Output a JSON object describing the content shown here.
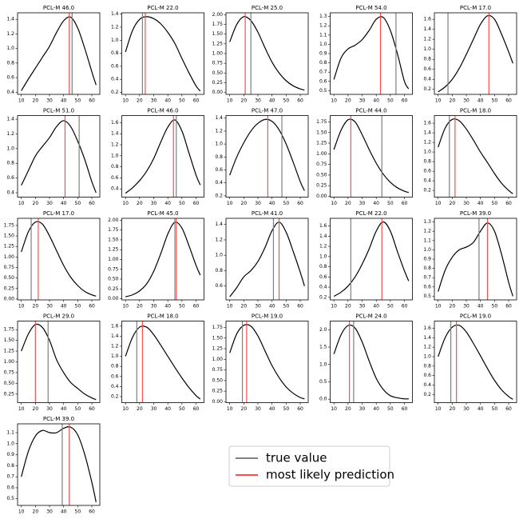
{
  "legend": [
    {
      "name": "true value",
      "color": "#808080"
    },
    {
      "name": "most likely prediction",
      "color": "#ff4d4d"
    }
  ],
  "chart_data": [
    {
      "type": "line",
      "title": "PCL-M 46.0",
      "color": "#000000",
      "true_value": 46,
      "prediction": 44,
      "x": [
        10,
        15,
        20,
        25,
        30,
        35,
        40,
        45,
        50,
        55,
        60,
        63
      ],
      "values": [
        0.42,
        0.58,
        0.73,
        0.88,
        1.03,
        1.22,
        1.38,
        1.43,
        1.28,
        1.0,
        0.68,
        0.5
      ],
      "xlim": [
        7.35,
        65.65
      ],
      "xticks": [
        10,
        20,
        30,
        40,
        50,
        60
      ],
      "ylim": [
        0.37,
        1.49
      ],
      "yticks": [
        0.4,
        0.6,
        0.8,
        {
          "value": 1,
          "label": "1.0"
        },
        1.2,
        1.4
      ]
    },
    {
      "type": "line",
      "title": "PCL-M 22.0",
      "color": "#000000",
      "true_value": 22,
      "prediction": 24,
      "x": [
        10,
        15,
        20,
        25,
        30,
        35,
        40,
        45,
        50,
        55,
        60,
        63
      ],
      "values": [
        0.82,
        1.15,
        1.32,
        1.36,
        1.33,
        1.25,
        1.12,
        0.95,
        0.72,
        0.5,
        0.3,
        0.22
      ],
      "xlim": [
        7.35,
        65.65
      ],
      "xticks": [
        10,
        20,
        30,
        40,
        50,
        60
      ],
      "ylim": [
        0.17,
        1.42
      ],
      "yticks": [
        0.2,
        0.4,
        0.6,
        0.8,
        {
          "value": 1,
          "label": "1.0"
        },
        1.2,
        1.4
      ]
    },
    {
      "type": "line",
      "title": "PCL-M 25.0",
      "color": "#000000",
      "true_value": 25,
      "prediction": 21,
      "x": [
        10,
        15,
        20,
        25,
        30,
        35,
        40,
        45,
        50,
        55,
        60,
        63
      ],
      "values": [
        1.3,
        1.75,
        1.95,
        1.85,
        1.55,
        1.15,
        0.78,
        0.5,
        0.3,
        0.17,
        0.09,
        0.06
      ],
      "xlim": [
        7.35,
        65.65
      ],
      "xticks": [
        10,
        20,
        30,
        40,
        50,
        60
      ],
      "ylim": [
        -0.05,
        2.05
      ],
      "yticks": [
        {
          "value": 0,
          "label": "0.00"
        },
        0.25,
        {
          "value": 0.5,
          "label": "0.50"
        },
        0.75,
        {
          "value": 1,
          "label": "1.00"
        },
        1.25,
        {
          "value": 1.5,
          "label": "1.50"
        },
        1.75,
        {
          "value": 2,
          "label": "2.00"
        }
      ]
    },
    {
      "type": "line",
      "title": "PCL-M 54.0",
      "color": "#000000",
      "true_value": 54,
      "prediction": 43,
      "x": [
        10,
        15,
        20,
        25,
        30,
        35,
        40,
        45,
        50,
        55,
        60,
        63
      ],
      "values": [
        0.62,
        0.85,
        0.95,
        0.99,
        1.05,
        1.15,
        1.27,
        1.29,
        1.15,
        0.9,
        0.6,
        0.52
      ],
      "xlim": [
        7.35,
        65.65
      ],
      "xticks": [
        10,
        20,
        30,
        40,
        50,
        60
      ],
      "ylim": [
        0.46,
        1.34
      ],
      "yticks": [
        0.5,
        0.6,
        0.7,
        0.8,
        0.9,
        {
          "value": 1,
          "label": "1.0"
        },
        1.1,
        1.2,
        1.3
      ]
    },
    {
      "type": "line",
      "title": "PCL-M 17.0",
      "color": "#000000",
      "true_value": 17,
      "prediction": 46,
      "x": [
        10,
        15,
        20,
        25,
        30,
        35,
        40,
        45,
        50,
        55,
        60,
        63
      ],
      "values": [
        0.15,
        0.25,
        0.4,
        0.62,
        0.9,
        1.2,
        1.5,
        1.67,
        1.6,
        1.3,
        0.95,
        0.72
      ],
      "xlim": [
        7.35,
        65.65
      ],
      "xticks": [
        10,
        20,
        30,
        40,
        50,
        60
      ],
      "ylim": [
        0.1,
        1.73
      ],
      "yticks": [
        0.2,
        0.4,
        0.6,
        0.8,
        {
          "value": 1,
          "label": "1.0"
        },
        1.2,
        1.4,
        1.6
      ]
    },
    {
      "type": "line",
      "title": "PCL-M 51.0",
      "color": "#000000",
      "true_value": 51,
      "prediction": 41,
      "x": [
        10,
        15,
        20,
        25,
        30,
        35,
        40,
        45,
        50,
        55,
        60,
        63
      ],
      "values": [
        0.5,
        0.7,
        0.9,
        1.03,
        1.15,
        1.3,
        1.38,
        1.3,
        1.1,
        0.85,
        0.55,
        0.4
      ],
      "xlim": [
        7.35,
        65.65
      ],
      "xticks": [
        10,
        20,
        30,
        40,
        50,
        60
      ],
      "ylim": [
        0.34,
        1.45
      ],
      "yticks": [
        0.4,
        0.6,
        0.8,
        {
          "value": 1,
          "label": "1.0"
        },
        1.2,
        1.4
      ]
    },
    {
      "type": "line",
      "title": "PCL-M 46.0",
      "color": "#000000",
      "true_value": 46,
      "prediction": 44,
      "x": [
        10,
        15,
        20,
        25,
        30,
        35,
        40,
        45,
        50,
        55,
        60,
        63
      ],
      "values": [
        0.32,
        0.42,
        0.55,
        0.72,
        0.95,
        1.25,
        1.52,
        1.65,
        1.45,
        1.05,
        0.65,
        0.47
      ],
      "xlim": [
        7.35,
        65.65
      ],
      "xticks": [
        10,
        20,
        30,
        40,
        50,
        60
      ],
      "ylim": [
        0.25,
        1.73
      ],
      "yticks": [
        0.4,
        0.6,
        0.8,
        {
          "value": 1,
          "label": "1.0"
        },
        1.2,
        1.4,
        1.6
      ]
    },
    {
      "type": "line",
      "title": "PCL-M 47.0",
      "color": "#000000",
      "true_value": 47,
      "prediction": 37,
      "x": [
        10,
        15,
        20,
        25,
        30,
        35,
        40,
        45,
        50,
        55,
        60,
        63
      ],
      "values": [
        0.52,
        0.8,
        1.02,
        1.2,
        1.32,
        1.38,
        1.35,
        1.22,
        1.0,
        0.72,
        0.42,
        0.28
      ],
      "xlim": [
        7.35,
        65.65
      ],
      "xticks": [
        10,
        20,
        30,
        40,
        50,
        60
      ],
      "ylim": [
        0.18,
        1.44
      ],
      "yticks": [
        0.2,
        0.4,
        0.6,
        0.8,
        {
          "value": 1,
          "label": "1.0"
        },
        1.2,
        1.4
      ]
    },
    {
      "type": "line",
      "title": "PCL-M 44.0",
      "color": "#000000",
      "true_value": 44,
      "prediction": 22,
      "x": [
        10,
        15,
        20,
        25,
        30,
        35,
        40,
        45,
        50,
        55,
        60,
        63
      ],
      "values": [
        1.1,
        1.55,
        1.8,
        1.75,
        1.45,
        1.1,
        0.78,
        0.52,
        0.33,
        0.2,
        0.12,
        0.09
      ],
      "xlim": [
        7.35,
        65.65
      ],
      "xticks": [
        10,
        20,
        30,
        40,
        50,
        60
      ],
      "ylim": [
        -0.02,
        1.9
      ],
      "yticks": [
        {
          "value": 0,
          "label": "0.00"
        },
        0.25,
        {
          "value": 0.5,
          "label": "0.50"
        },
        0.75,
        {
          "value": 1,
          "label": "1.00"
        },
        1.25,
        {
          "value": 1.5,
          "label": "1.50"
        },
        1.75
      ]
    },
    {
      "type": "line",
      "title": "PCL-M 18.0",
      "color": "#000000",
      "true_value": 18,
      "prediction": 22,
      "x": [
        10,
        15,
        20,
        25,
        30,
        35,
        40,
        45,
        50,
        55,
        60,
        63
      ],
      "values": [
        1.1,
        1.5,
        1.68,
        1.65,
        1.48,
        1.25,
        1.0,
        0.78,
        0.55,
        0.35,
        0.2,
        0.13
      ],
      "xlim": [
        7.35,
        65.65
      ],
      "xticks": [
        10,
        20,
        30,
        40,
        50,
        60
      ],
      "ylim": [
        0.06,
        1.76
      ],
      "yticks": [
        0.2,
        0.4,
        0.6,
        0.8,
        {
          "value": 1,
          "label": "1.0"
        },
        1.2,
        1.4,
        1.6
      ]
    },
    {
      "type": "line",
      "title": "PCL-M 17.0",
      "color": "#000000",
      "true_value": 17,
      "prediction": 22,
      "x": [
        10,
        15,
        20,
        25,
        30,
        35,
        40,
        45,
        50,
        55,
        60,
        63
      ],
      "values": [
        1.12,
        1.6,
        1.83,
        1.78,
        1.5,
        1.15,
        0.8,
        0.52,
        0.32,
        0.18,
        0.1,
        0.07
      ],
      "xlim": [
        7.35,
        65.65
      ],
      "xticks": [
        10,
        20,
        30,
        40,
        50,
        60
      ],
      "ylim": [
        -0.02,
        1.92
      ],
      "yticks": [
        {
          "value": 0,
          "label": "0.00"
        },
        0.25,
        {
          "value": 0.5,
          "label": "0.50"
        },
        0.75,
        {
          "value": 1,
          "label": "1.00"
        },
        1.25,
        {
          "value": 1.5,
          "label": "1.50"
        },
        1.75
      ]
    },
    {
      "type": "line",
      "title": "PCL-M 45.0",
      "color": "#000000",
      "true_value": 45,
      "prediction": 46,
      "x": [
        10,
        15,
        20,
        25,
        30,
        35,
        40,
        45,
        50,
        55,
        60,
        63
      ],
      "values": [
        0.05,
        0.1,
        0.2,
        0.38,
        0.7,
        1.15,
        1.65,
        1.95,
        1.8,
        1.35,
        0.85,
        0.6
      ],
      "xlim": [
        7.35,
        65.65
      ],
      "xticks": [
        10,
        20,
        30,
        40,
        50,
        60
      ],
      "ylim": [
        -0.03,
        2.05
      ],
      "yticks": [
        {
          "value": 0,
          "label": "0.00"
        },
        0.25,
        {
          "value": 0.5,
          "label": "0.50"
        },
        0.75,
        {
          "value": 1,
          "label": "1.00"
        },
        1.25,
        {
          "value": 1.5,
          "label": "1.50"
        },
        1.75,
        {
          "value": 2,
          "label": "2.00"
        }
      ]
    },
    {
      "type": "line",
      "title": "PCL-M 41.0",
      "color": "#000000",
      "true_value": 41,
      "prediction": 45,
      "x": [
        10,
        15,
        20,
        25,
        30,
        35,
        40,
        45,
        50,
        55,
        60,
        63
      ],
      "values": [
        0.46,
        0.58,
        0.72,
        0.8,
        0.92,
        1.1,
        1.32,
        1.43,
        1.3,
        1.05,
        0.78,
        0.6
      ],
      "xlim": [
        7.35,
        65.65
      ],
      "xticks": [
        10,
        20,
        30,
        40,
        50,
        60
      ],
      "ylim": [
        0.42,
        1.48
      ],
      "yticks": [
        0.6,
        0.8,
        {
          "value": 1,
          "label": "1.0"
        },
        1.2,
        1.4
      ]
    },
    {
      "type": "line",
      "title": "PCL-M 22.0",
      "color": "#000000",
      "true_value": 22,
      "prediction": 44,
      "x": [
        10,
        15,
        20,
        25,
        30,
        35,
        40,
        45,
        50,
        55,
        60,
        63
      ],
      "values": [
        0.22,
        0.3,
        0.42,
        0.6,
        0.85,
        1.15,
        1.5,
        1.68,
        1.5,
        1.1,
        0.72,
        0.52
      ],
      "xlim": [
        7.35,
        65.65
      ],
      "xticks": [
        10,
        20,
        30,
        40,
        50,
        60
      ],
      "ylim": [
        0.15,
        1.75
      ],
      "yticks": [
        0.2,
        0.4,
        0.6,
        0.8,
        {
          "value": 1,
          "label": "1.0"
        },
        1.2,
        1.4,
        1.6
      ]
    },
    {
      "type": "line",
      "title": "PCL-M 39.0",
      "color": "#000000",
      "true_value": 39,
      "prediction": 45,
      "x": [
        10,
        15,
        20,
        25,
        30,
        35,
        40,
        45,
        50,
        55,
        60,
        63
      ],
      "values": [
        0.55,
        0.78,
        0.92,
        1.0,
        1.03,
        1.08,
        1.2,
        1.29,
        1.2,
        0.95,
        0.65,
        0.5
      ],
      "xlim": [
        7.35,
        65.65
      ],
      "xticks": [
        10,
        20,
        30,
        40,
        50,
        60
      ],
      "ylim": [
        0.46,
        1.34
      ],
      "yticks": [
        0.5,
        0.6,
        0.7,
        0.8,
        0.9,
        {
          "value": 1,
          "label": "1.0"
        },
        1.1,
        1.2,
        1.3
      ]
    },
    {
      "type": "line",
      "title": "PCL-M 29.0",
      "color": "#000000",
      "true_value": 29,
      "prediction": 20,
      "x": [
        10,
        15,
        20,
        25,
        30,
        35,
        40,
        45,
        50,
        55,
        60,
        63
      ],
      "values": [
        1.25,
        1.65,
        1.87,
        1.8,
        1.5,
        1.05,
        0.75,
        0.52,
        0.38,
        0.25,
        0.16,
        0.12
      ],
      "xlim": [
        7.35,
        65.65
      ],
      "xticks": [
        10,
        20,
        30,
        40,
        50,
        60
      ],
      "ylim": [
        0.05,
        1.95
      ],
      "yticks": [
        0.25,
        {
          "value": 0.5,
          "label": "0.50"
        },
        0.75,
        {
          "value": 1,
          "label": "1.00"
        },
        1.25,
        {
          "value": 1.5,
          "label": "1.50"
        },
        1.75
      ]
    },
    {
      "type": "line",
      "title": "PCL-M 18.0",
      "color": "#000000",
      "true_value": 18,
      "prediction": 22,
      "x": [
        10,
        15,
        20,
        25,
        30,
        35,
        40,
        45,
        50,
        55,
        60,
        63
      ],
      "values": [
        1.0,
        1.38,
        1.58,
        1.58,
        1.43,
        1.22,
        1.0,
        0.78,
        0.57,
        0.38,
        0.22,
        0.15
      ],
      "xlim": [
        7.35,
        65.65
      ],
      "xticks": [
        10,
        20,
        30,
        40,
        50,
        60
      ],
      "ylim": [
        0.08,
        1.7
      ],
      "yticks": [
        0.2,
        0.4,
        0.6,
        0.8,
        {
          "value": 1,
          "label": "1.0"
        },
        1.2,
        1.4,
        1.6
      ]
    },
    {
      "type": "line",
      "title": "PCL-M 19.0",
      "color": "#000000",
      "true_value": 19,
      "prediction": 22,
      "x": [
        10,
        15,
        20,
        25,
        30,
        35,
        40,
        45,
        50,
        55,
        60,
        63
      ],
      "values": [
        1.15,
        1.6,
        1.8,
        1.78,
        1.55,
        1.2,
        0.85,
        0.57,
        0.35,
        0.2,
        0.1,
        0.07
      ],
      "xlim": [
        7.35,
        65.65
      ],
      "xticks": [
        10,
        20,
        30,
        40,
        50,
        60
      ],
      "ylim": [
        -0.02,
        1.9
      ],
      "yticks": [
        {
          "value": 0,
          "label": "0.00"
        },
        0.25,
        {
          "value": 0.5,
          "label": "0.50"
        },
        0.75,
        {
          "value": 1,
          "label": "1.00"
        },
        1.25,
        {
          "value": 1.5,
          "label": "1.50"
        },
        1.75
      ]
    },
    {
      "type": "line",
      "title": "PCL-M 24.0",
      "color": "#000000",
      "true_value": 24,
      "prediction": 21,
      "x": [
        10,
        15,
        20,
        25,
        30,
        35,
        40,
        45,
        50,
        55,
        60,
        63
      ],
      "values": [
        1.3,
        1.85,
        2.12,
        2.05,
        1.65,
        1.1,
        0.6,
        0.28,
        0.1,
        0.04,
        0.01,
        0.01
      ],
      "xlim": [
        7.35,
        65.65
      ],
      "xticks": [
        10,
        20,
        30,
        40,
        50,
        60
      ],
      "ylim": [
        -0.1,
        2.25
      ],
      "yticks": [
        {
          "value": 0,
          "label": "0.0"
        },
        0.5,
        {
          "value": 1,
          "label": "1.0"
        },
        1.5,
        {
          "value": 2,
          "label": "2.0"
        }
      ]
    },
    {
      "type": "line",
      "title": "PCL-M 19.0",
      "color": "#000000",
      "true_value": 19,
      "prediction": 23,
      "x": [
        10,
        15,
        20,
        25,
        30,
        35,
        40,
        45,
        50,
        55,
        60,
        63
      ],
      "values": [
        1.0,
        1.4,
        1.62,
        1.66,
        1.52,
        1.28,
        1.02,
        0.75,
        0.5,
        0.3,
        0.16,
        0.1
      ],
      "xlim": [
        7.35,
        65.65
      ],
      "xticks": [
        10,
        20,
        30,
        40,
        50,
        60
      ],
      "ylim": [
        0.03,
        1.75
      ],
      "yticks": [
        0.2,
        0.4,
        0.6,
        0.8,
        {
          "value": 1,
          "label": "1.0"
        },
        1.2,
        1.4,
        1.6
      ]
    },
    {
      "type": "line",
      "title": "PCL-M 39.0",
      "color": "#000000",
      "true_value": 39,
      "prediction": 44,
      "x": [
        10,
        15,
        20,
        25,
        30,
        35,
        40,
        45,
        50,
        55,
        60,
        63
      ],
      "values": [
        0.7,
        0.93,
        1.07,
        1.12,
        1.1,
        1.1,
        1.14,
        1.15,
        1.08,
        0.9,
        0.65,
        0.47
      ],
      "xlim": [
        7.35,
        65.65
      ],
      "xticks": [
        10,
        20,
        30,
        40,
        50,
        60
      ],
      "ylim": [
        0.44,
        1.18
      ],
      "yticks": [
        0.5,
        0.6,
        0.7,
        0.8,
        0.9,
        {
          "value": 1,
          "label": "1.0"
        },
        1.1
      ]
    }
  ]
}
